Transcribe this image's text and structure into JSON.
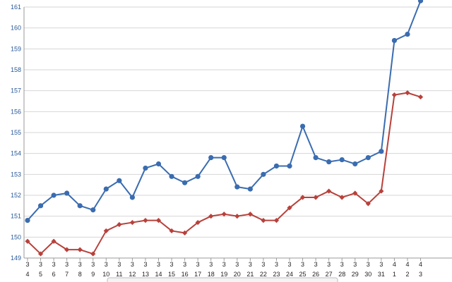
{
  "chart_data": {
    "type": "line",
    "title": "",
    "xlabel": "",
    "ylabel": "",
    "ylim": [
      149,
      161
    ],
    "yticks": [
      149,
      150,
      151,
      152,
      153,
      154,
      155,
      156,
      157,
      158,
      159,
      160,
      161
    ],
    "grid": true,
    "categories": [
      {
        "month": "3",
        "day": "4"
      },
      {
        "month": "3",
        "day": "5"
      },
      {
        "month": "3",
        "day": "6"
      },
      {
        "month": "3",
        "day": "7"
      },
      {
        "month": "3",
        "day": "8"
      },
      {
        "month": "3",
        "day": "9"
      },
      {
        "month": "3",
        "day": "10"
      },
      {
        "month": "3",
        "day": "11"
      },
      {
        "month": "3",
        "day": "12"
      },
      {
        "month": "3",
        "day": "13"
      },
      {
        "month": "3",
        "day": "14"
      },
      {
        "month": "3",
        "day": "15"
      },
      {
        "month": "3",
        "day": "16"
      },
      {
        "month": "3",
        "day": "17"
      },
      {
        "month": "3",
        "day": "18"
      },
      {
        "month": "3",
        "day": "19"
      },
      {
        "month": "3",
        "day": "20"
      },
      {
        "month": "3",
        "day": "21"
      },
      {
        "month": "3",
        "day": "22"
      },
      {
        "month": "3",
        "day": "23"
      },
      {
        "month": "3",
        "day": "24"
      },
      {
        "month": "3",
        "day": "25"
      },
      {
        "month": "3",
        "day": "26"
      },
      {
        "month": "3",
        "day": "27"
      },
      {
        "month": "3",
        "day": "28"
      },
      {
        "month": "3",
        "day": "29"
      },
      {
        "month": "3",
        "day": "30"
      },
      {
        "month": "3",
        "day": "31"
      },
      {
        "month": "4",
        "day": "1"
      },
      {
        "month": "4",
        "day": "2"
      },
      {
        "month": "4",
        "day": "3"
      }
    ],
    "series": [
      {
        "color": "#3a6cb0",
        "marker": "circle",
        "values": [
          150.8,
          151.5,
          152.0,
          152.1,
          151.5,
          151.3,
          152.3,
          152.7,
          151.9,
          153.3,
          153.5,
          152.9,
          152.6,
          152.9,
          153.8,
          153.8,
          152.4,
          152.3,
          153.0,
          153.4,
          153.4,
          155.3,
          153.8,
          153.6,
          153.7,
          153.5,
          153.8,
          154.1,
          159.4,
          159.7,
          161.3
        ]
      },
      {
        "color": "#b8413b",
        "marker": "diamond",
        "values": [
          149.8,
          149.2,
          149.8,
          149.4,
          149.4,
          149.2,
          150.3,
          150.6,
          150.7,
          150.8,
          150.8,
          150.3,
          150.2,
          150.7,
          151.0,
          151.1,
          151.0,
          151.1,
          150.8,
          150.8,
          151.4,
          151.9,
          151.9,
          152.2,
          151.9,
          152.1,
          151.6,
          152.2,
          156.8,
          156.9,
          156.7
        ]
      }
    ]
  }
}
